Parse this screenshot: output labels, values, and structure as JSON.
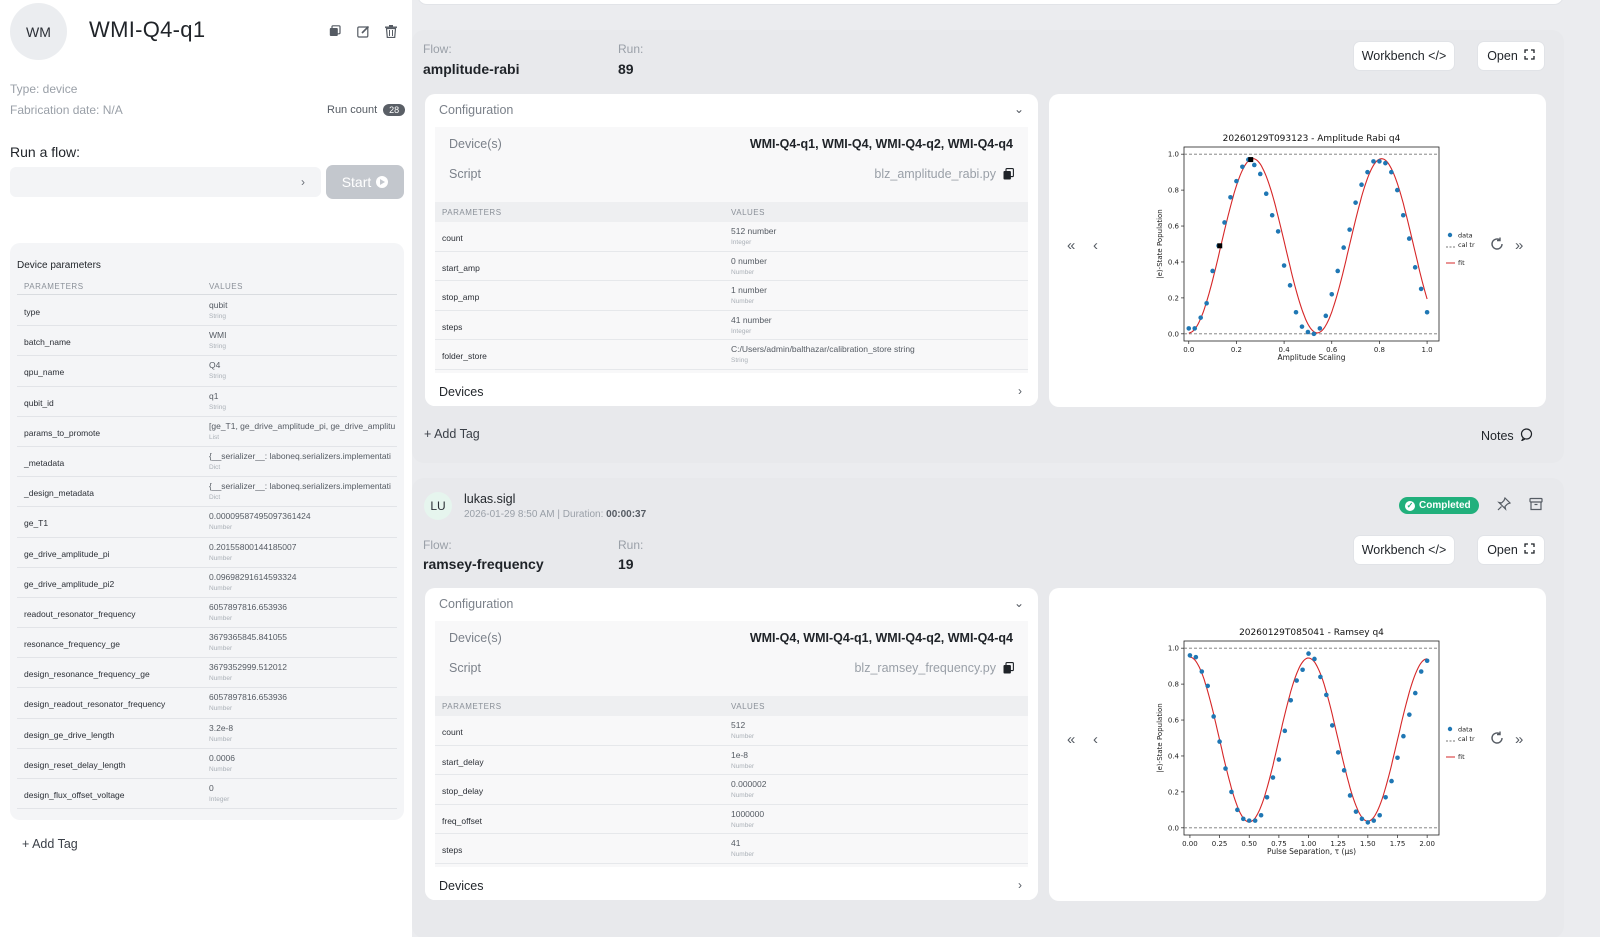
{
  "device": {
    "avatar": "WM",
    "name": "WMI-Q4-q1",
    "type_line": "Type: device",
    "fab_line": "Fabrication date: N/A",
    "run_count_label": "Run count",
    "run_count": "28",
    "run_flow_label": "Run a flow:",
    "flow_select_value": "",
    "start_label": "Start",
    "params_title": "Device parameters",
    "col_params": "PARAMETERS",
    "col_values": "VALUES",
    "params": [
      {
        "k": "type",
        "v": "qubit",
        "t": "String"
      },
      {
        "k": "batch_name",
        "v": "WMI",
        "t": "String"
      },
      {
        "k": "qpu_name",
        "v": "Q4",
        "t": "String"
      },
      {
        "k": "qubit_id",
        "v": "q1",
        "t": "String"
      },
      {
        "k": "params_to_promote",
        "v": "[ge_T1, ge_drive_amplitude_pi, ge_drive_amplitu",
        "t": "List"
      },
      {
        "k": "_metadata",
        "v": "{__serializer__: laboneq.serializers.implementati",
        "t": "Dict"
      },
      {
        "k": "_design_metadata",
        "v": "{__serializer__: laboneq.serializers.implementati",
        "t": "Dict"
      },
      {
        "k": "ge_T1",
        "v": "0.00009587495097361424",
        "t": "Number"
      },
      {
        "k": "ge_drive_amplitude_pi",
        "v": "0.20155800144185007",
        "t": "Number"
      },
      {
        "k": "ge_drive_amplitude_pi2",
        "v": "0.09698291614593324",
        "t": "Number"
      },
      {
        "k": "readout_resonator_frequency",
        "v": "6057897816.653936",
        "t": "Number"
      },
      {
        "k": "resonance_frequency_ge",
        "v": "3679365845.841055",
        "t": "Number"
      },
      {
        "k": "design_resonance_frequency_ge",
        "v": "3679352999.512012",
        "t": "Number"
      },
      {
        "k": "design_readout_resonator_frequency",
        "v": "6057897816.653936",
        "t": "Number"
      },
      {
        "k": "design_ge_drive_length",
        "v": "3.2e-8",
        "t": "Number"
      },
      {
        "k": "design_reset_delay_length",
        "v": "0.0006",
        "t": "Number"
      },
      {
        "k": "design_flux_offset_voltage",
        "v": "0",
        "t": "Integer"
      }
    ],
    "add_tag": "+ Add Tag"
  },
  "runs": [
    {
      "flow_label": "Flow:",
      "flow": "amplitude-rabi",
      "run_label": "Run:",
      "run": "89",
      "workbench": "Workbench </>",
      "open": "Open",
      "config_label": "Configuration",
      "devices_key": "Device(s)",
      "devices_val": "WMI-Q4-q1, WMI-Q4, WMI-Q4-q2, WMI-Q4-q4",
      "script_key": "Script",
      "script_val": "blz_amplitude_rabi.py",
      "col_params": "PARAMETERS",
      "col_values": "VALUES",
      "params": [
        {
          "k": "count",
          "v": "512 number",
          "t": "Integer"
        },
        {
          "k": "start_amp",
          "v": "0 number",
          "t": "Number"
        },
        {
          "k": "stop_amp",
          "v": "1 number",
          "t": "Number"
        },
        {
          "k": "steps",
          "v": "41 number",
          "t": "Integer"
        },
        {
          "k": "folder_store",
          "v": "C:/Users/admin/balthazar/calibration_store string",
          "t": "String"
        }
      ],
      "devices_row": "Devices",
      "add_tag": "+ Add Tag",
      "notes": "Notes"
    },
    {
      "user_avatar": "LU",
      "user": "lukas.sigl",
      "date": "2026-01-29 8:50 AM",
      "duration_label": "| Duration:",
      "duration": "00:00:37",
      "status": "Completed",
      "flow_label": "Flow:",
      "flow": "ramsey-frequency",
      "run_label": "Run:",
      "run": "19",
      "workbench": "Workbench </>",
      "open": "Open",
      "config_label": "Configuration",
      "devices_key": "Device(s)",
      "devices_val": "WMI-Q4, WMI-Q4-q1, WMI-Q4-q2, WMI-Q4-q4",
      "script_key": "Script",
      "script_val": "blz_ramsey_frequency.py",
      "col_params": "PARAMETERS",
      "col_values": "VALUES",
      "params": [
        {
          "k": "count",
          "v": "512",
          "t": "Number"
        },
        {
          "k": "start_delay",
          "v": "1e-8",
          "t": "Number"
        },
        {
          "k": "stop_delay",
          "v": "0.000002",
          "t": "Number"
        },
        {
          "k": "freq_offset",
          "v": "1000000",
          "t": "Number"
        },
        {
          "k": "steps",
          "v": "41",
          "t": "Number"
        }
      ],
      "devices_row": "Devices"
    }
  ],
  "chart_data": [
    {
      "type": "scatter",
      "title": "20260129T093123 - Amplitude Rabi q4",
      "xlabel": "Amplitude Scaling",
      "ylabel": "|e⟩-State Population",
      "xlim": [
        -0.02,
        1.05
      ],
      "ylim": [
        -0.04,
        1.04
      ],
      "xticks": [
        "0.0",
        "0.2",
        "0.4",
        "0.6",
        "0.8",
        "1.0"
      ],
      "yticks": [
        "0.0",
        "0.2",
        "0.4",
        "0.6",
        "0.8",
        "1.0"
      ],
      "legend": [
        "data",
        "cal tra",
        "fit"
      ],
      "model": {
        "kind": "rabi",
        "pi_amp": 0.2696,
        "amp0": 0.0
      },
      "calibration_lines": [
        0.0,
        1.0
      ],
      "highlight_points": [
        {
          "x": 0.13,
          "y": 0.49
        },
        {
          "x": 0.26,
          "y": 0.97
        }
      ],
      "x": [
        0.0,
        0.025,
        0.05,
        0.075,
        0.1,
        0.125,
        0.15,
        0.175,
        0.2,
        0.225,
        0.25,
        0.275,
        0.3,
        0.325,
        0.35,
        0.375,
        0.4,
        0.425,
        0.45,
        0.475,
        0.5,
        0.525,
        0.55,
        0.575,
        0.6,
        0.625,
        0.65,
        0.675,
        0.7,
        0.725,
        0.75,
        0.775,
        0.8,
        0.825,
        0.85,
        0.875,
        0.9,
        0.925,
        0.95,
        0.975,
        1.0
      ],
      "y": [
        0.03,
        0.03,
        0.09,
        0.17,
        0.35,
        0.49,
        0.62,
        0.76,
        0.85,
        0.93,
        0.97,
        0.94,
        0.89,
        0.78,
        0.66,
        0.57,
        0.38,
        0.27,
        0.12,
        0.04,
        0.01,
        0.0,
        0.03,
        0.1,
        0.22,
        0.35,
        0.48,
        0.58,
        0.73,
        0.83,
        0.9,
        0.96,
        0.96,
        0.95,
        0.9,
        0.8,
        0.66,
        0.53,
        0.37,
        0.25,
        0.12
      ],
      "series_names": [
        "data",
        "fit"
      ]
    },
    {
      "type": "scatter",
      "title": "20260129T085041 - Ramsey q4",
      "xlabel": "Pulse Separation, τ (μs)",
      "ylabel": "|e⟩-State Population",
      "xlim": [
        -0.05,
        2.1
      ],
      "ylim": [
        -0.04,
        1.04
      ],
      "xticks": [
        "0.00",
        "0.25",
        "0.50",
        "0.75",
        "1.00",
        "1.25",
        "1.50",
        "1.75",
        "2.00"
      ],
      "yticks": [
        "0.0",
        "0.2",
        "0.4",
        "0.6",
        "0.8",
        "1.0"
      ],
      "legend": [
        "data",
        "cal tra",
        "fit"
      ],
      "model": {
        "kind": "ramsey",
        "period": 1.0,
        "phase_x": 0.0
      },
      "calibration_lines": [
        0.0,
        1.0
      ],
      "x": [
        0.0,
        0.05,
        0.1,
        0.15,
        0.2,
        0.25,
        0.3,
        0.35,
        0.4,
        0.45,
        0.5,
        0.55,
        0.6,
        0.65,
        0.7,
        0.75,
        0.8,
        0.85,
        0.9,
        0.95,
        1.0,
        1.05,
        1.1,
        1.15,
        1.2,
        1.25,
        1.3,
        1.35,
        1.4,
        1.45,
        1.5,
        1.55,
        1.6,
        1.65,
        1.7,
        1.75,
        1.8,
        1.85,
        1.9,
        1.95,
        2.0
      ],
      "y": [
        0.96,
        0.95,
        0.87,
        0.79,
        0.62,
        0.48,
        0.33,
        0.2,
        0.1,
        0.05,
        0.04,
        0.04,
        0.07,
        0.17,
        0.28,
        0.38,
        0.54,
        0.71,
        0.82,
        0.88,
        0.97,
        0.94,
        0.84,
        0.74,
        0.57,
        0.42,
        0.32,
        0.18,
        0.09,
        0.05,
        0.03,
        0.04,
        0.07,
        0.17,
        0.26,
        0.39,
        0.51,
        0.63,
        0.75,
        0.87,
        0.93
      ],
      "series_names": [
        "data",
        "fit"
      ]
    }
  ]
}
